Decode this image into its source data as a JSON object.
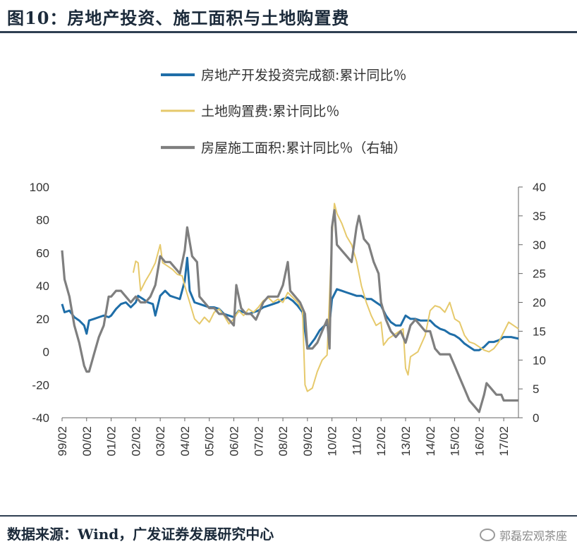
{
  "figure": {
    "title": "图10：房地产投资、施工面积与土地购置费",
    "source": "数据来源：Wind，广发证券发展研究中心",
    "watermark": "郭磊宏观茶座"
  },
  "chart_data": {
    "type": "line",
    "title": "",
    "legend_position": "top",
    "left_axis": {
      "min": -40,
      "max": 100,
      "ticks": [
        100,
        80,
        60,
        40,
        20,
        0,
        -20,
        -40
      ]
    },
    "right_axis": {
      "min": 0,
      "max": 40,
      "ticks": [
        40,
        35,
        30,
        25,
        20,
        15,
        10,
        5,
        0
      ]
    },
    "x_range": [
      1999.0,
      2017.6
    ],
    "x_ticks": [
      {
        "label": "99/02",
        "value": 1999.0
      },
      {
        "label": "00/02",
        "value": 2000.0
      },
      {
        "label": "01/02",
        "value": 2001.0
      },
      {
        "label": "02/02",
        "value": 2002.0
      },
      {
        "label": "03/02",
        "value": 2003.0
      },
      {
        "label": "04/02",
        "value": 2004.0
      },
      {
        "label": "05/02",
        "value": 2005.0
      },
      {
        "label": "06/02",
        "value": 2006.0
      },
      {
        "label": "07/02",
        "value": 2007.0
      },
      {
        "label": "08/02",
        "value": 2008.0
      },
      {
        "label": "09/02",
        "value": 2009.0
      },
      {
        "label": "10/02",
        "value": 2010.0
      },
      {
        "label": "11/02",
        "value": 2011.0
      },
      {
        "label": "12/02",
        "value": 2012.0
      },
      {
        "label": "13/02",
        "value": 2013.0
      },
      {
        "label": "14/02",
        "value": 2014.0
      },
      {
        "label": "15/02",
        "value": 2015.0
      },
      {
        "label": "16/02",
        "value": 2016.0
      },
      {
        "label": "17/02",
        "value": 2017.0
      }
    ],
    "series": [
      {
        "name": "房地产开发投资完成额:累计同比％",
        "axis": "left",
        "color": "#1f6ea8",
        "width": 3,
        "points": [
          [
            1999.0,
            29
          ],
          [
            1999.1,
            24
          ],
          [
            1999.3,
            25
          ],
          [
            1999.5,
            21
          ],
          [
            1999.7,
            19
          ],
          [
            1999.9,
            16
          ],
          [
            2000.0,
            11
          ],
          [
            2000.1,
            19
          ],
          [
            2000.3,
            20
          ],
          [
            2000.5,
            21
          ],
          [
            2000.7,
            22
          ],
          [
            2000.9,
            21
          ],
          [
            2001.0,
            22
          ],
          [
            2001.2,
            26
          ],
          [
            2001.4,
            29
          ],
          [
            2001.6,
            30
          ],
          [
            2001.8,
            27
          ],
          [
            2002.0,
            30
          ],
          [
            2002.1,
            34
          ],
          [
            2002.3,
            32
          ],
          [
            2002.5,
            30
          ],
          [
            2002.7,
            29
          ],
          [
            2002.8,
            22
          ],
          [
            2003.0,
            34
          ],
          [
            2003.2,
            37
          ],
          [
            2003.4,
            34
          ],
          [
            2003.6,
            33
          ],
          [
            2003.8,
            32
          ],
          [
            2004.0,
            43
          ],
          [
            2004.1,
            57
          ],
          [
            2004.2,
            37
          ],
          [
            2004.4,
            30
          ],
          [
            2004.6,
            29
          ],
          [
            2004.8,
            28
          ],
          [
            2005.0,
            27
          ],
          [
            2005.2,
            27
          ],
          [
            2005.4,
            26
          ],
          [
            2005.6,
            23
          ],
          [
            2005.8,
            22
          ],
          [
            2006.0,
            21
          ],
          [
            2006.2,
            25
          ],
          [
            2006.4,
            24
          ],
          [
            2006.6,
            23
          ],
          [
            2006.8,
            24
          ],
          [
            2007.0,
            25
          ],
          [
            2007.2,
            27
          ],
          [
            2007.4,
            28
          ],
          [
            2007.6,
            29
          ],
          [
            2007.8,
            30
          ],
          [
            2008.0,
            32
          ],
          [
            2008.2,
            33
          ],
          [
            2008.4,
            31
          ],
          [
            2008.6,
            28
          ],
          [
            2008.8,
            24
          ],
          [
            2009.0,
            2
          ],
          [
            2009.1,
            4
          ],
          [
            2009.3,
            8
          ],
          [
            2009.5,
            13
          ],
          [
            2009.7,
            16
          ],
          [
            2009.9,
            17
          ],
          [
            2010.0,
            32
          ],
          [
            2010.2,
            38
          ],
          [
            2010.4,
            37
          ],
          [
            2010.6,
            36
          ],
          [
            2010.8,
            35
          ],
          [
            2011.0,
            34
          ],
          [
            2011.2,
            34
          ],
          [
            2011.4,
            32
          ],
          [
            2011.6,
            32
          ],
          [
            2011.8,
            30
          ],
          [
            2012.0,
            28
          ],
          [
            2012.2,
            22
          ],
          [
            2012.4,
            18
          ],
          [
            2012.6,
            16
          ],
          [
            2012.8,
            16
          ],
          [
            2013.0,
            22
          ],
          [
            2013.2,
            20
          ],
          [
            2013.4,
            20
          ],
          [
            2013.6,
            19
          ],
          [
            2013.8,
            19
          ],
          [
            2014.0,
            19
          ],
          [
            2014.2,
            16
          ],
          [
            2014.4,
            14
          ],
          [
            2014.6,
            13
          ],
          [
            2014.8,
            11
          ],
          [
            2015.0,
            10
          ],
          [
            2015.2,
            8
          ],
          [
            2015.4,
            5
          ],
          [
            2015.6,
            3
          ],
          [
            2015.8,
            1
          ],
          [
            2016.0,
            1
          ],
          [
            2016.2,
            3
          ],
          [
            2016.4,
            6
          ],
          [
            2016.6,
            6
          ],
          [
            2016.8,
            7
          ],
          [
            2017.0,
            9
          ],
          [
            2017.3,
            9
          ],
          [
            2017.6,
            8
          ]
        ]
      },
      {
        "name": "土地购置费:累计同比％",
        "axis": "left",
        "color": "#e6c96b",
        "width": 2,
        "points": [
          [
            2001.9,
            48
          ],
          [
            2002.0,
            55
          ],
          [
            2002.1,
            54
          ],
          [
            2002.2,
            37
          ],
          [
            2002.4,
            43
          ],
          [
            2002.6,
            48
          ],
          [
            2002.8,
            54
          ],
          [
            2003.0,
            65
          ],
          [
            2003.1,
            54
          ],
          [
            2003.3,
            52
          ],
          [
            2003.5,
            50
          ],
          [
            2003.7,
            47
          ],
          [
            2003.9,
            46
          ],
          [
            2004.0,
            40
          ],
          [
            2004.2,
            30
          ],
          [
            2004.4,
            20
          ],
          [
            2004.6,
            17
          ],
          [
            2004.8,
            21
          ],
          [
            2005.0,
            18
          ],
          [
            2005.2,
            24
          ],
          [
            2005.4,
            26
          ],
          [
            2005.6,
            22
          ],
          [
            2005.8,
            17
          ],
          [
            2006.0,
            20
          ],
          [
            2006.2,
            25
          ],
          [
            2006.4,
            22
          ],
          [
            2006.6,
            26
          ],
          [
            2006.8,
            24
          ],
          [
            2007.0,
            27
          ],
          [
            2007.2,
            31
          ],
          [
            2007.4,
            33
          ],
          [
            2007.6,
            30
          ],
          [
            2007.8,
            32
          ],
          [
            2008.0,
            30
          ],
          [
            2008.2,
            36
          ],
          [
            2008.4,
            33
          ],
          [
            2008.6,
            30
          ],
          [
            2008.8,
            25
          ],
          [
            2008.9,
            -20
          ],
          [
            2009.0,
            -24
          ],
          [
            2009.2,
            -22
          ],
          [
            2009.4,
            -12
          ],
          [
            2009.6,
            -5
          ],
          [
            2009.8,
            -2
          ],
          [
            2010.0,
            70
          ],
          [
            2010.1,
            90
          ],
          [
            2010.2,
            84
          ],
          [
            2010.4,
            78
          ],
          [
            2010.6,
            70
          ],
          [
            2010.8,
            65
          ],
          [
            2011.0,
            55
          ],
          [
            2011.2,
            40
          ],
          [
            2011.4,
            30
          ],
          [
            2011.6,
            22
          ],
          [
            2011.8,
            16
          ],
          [
            2011.9,
            17
          ],
          [
            2012.0,
            18
          ],
          [
            2012.1,
            4
          ],
          [
            2012.3,
            8
          ],
          [
            2012.5,
            10
          ],
          [
            2012.7,
            12
          ],
          [
            2012.9,
            14
          ],
          [
            2013.0,
            -10
          ],
          [
            2013.1,
            -14
          ],
          [
            2013.2,
            -3
          ],
          [
            2013.5,
            0
          ],
          [
            2013.8,
            10
          ],
          [
            2014.0,
            25
          ],
          [
            2014.2,
            28
          ],
          [
            2014.4,
            27
          ],
          [
            2014.6,
            24
          ],
          [
            2014.8,
            30
          ],
          [
            2015.0,
            20
          ],
          [
            2015.2,
            18
          ],
          [
            2015.4,
            10
          ],
          [
            2015.6,
            6
          ],
          [
            2015.8,
            5
          ],
          [
            2016.0,
            3
          ],
          [
            2016.2,
            1
          ],
          [
            2016.4,
            0
          ],
          [
            2016.6,
            2
          ],
          [
            2016.8,
            6
          ],
          [
            2017.0,
            12
          ],
          [
            2017.2,
            18
          ],
          [
            2017.4,
            16
          ],
          [
            2017.6,
            14
          ]
        ]
      },
      {
        "name": "房屋施工面积:累计同比％（右轴）",
        "axis": "right",
        "color": "#7f7f7f",
        "width": 3.2,
        "points": [
          [
            1999.0,
            29
          ],
          [
            1999.1,
            24
          ],
          [
            1999.3,
            21
          ],
          [
            1999.5,
            16
          ],
          [
            1999.7,
            13
          ],
          [
            1999.9,
            9
          ],
          [
            2000.0,
            8
          ],
          [
            2000.1,
            8
          ],
          [
            2000.3,
            11
          ],
          [
            2000.5,
            14
          ],
          [
            2000.7,
            16
          ],
          [
            2000.9,
            21
          ],
          [
            2001.0,
            21
          ],
          [
            2001.2,
            22
          ],
          [
            2001.4,
            22
          ],
          [
            2001.6,
            21
          ],
          [
            2001.8,
            20
          ],
          [
            2002.0,
            21
          ],
          [
            2002.2,
            20
          ],
          [
            2002.4,
            20
          ],
          [
            2002.6,
            21
          ],
          [
            2002.8,
            23
          ],
          [
            2003.0,
            28
          ],
          [
            2003.2,
            27
          ],
          [
            2003.4,
            27
          ],
          [
            2003.6,
            26
          ],
          [
            2003.8,
            25
          ],
          [
            2004.0,
            29
          ],
          [
            2004.1,
            33
          ],
          [
            2004.3,
            28
          ],
          [
            2004.5,
            27
          ],
          [
            2004.6,
            21
          ],
          [
            2004.8,
            20
          ],
          [
            2005.0,
            19
          ],
          [
            2005.2,
            19
          ],
          [
            2005.4,
            18
          ],
          [
            2005.6,
            18
          ],
          [
            2005.8,
            17
          ],
          [
            2006.0,
            16
          ],
          [
            2006.1,
            23
          ],
          [
            2006.3,
            19
          ],
          [
            2006.5,
            18
          ],
          [
            2006.7,
            18
          ],
          [
            2006.9,
            17
          ],
          [
            2007.0,
            18
          ],
          [
            2007.2,
            20
          ],
          [
            2007.4,
            21
          ],
          [
            2007.6,
            21
          ],
          [
            2007.8,
            21
          ],
          [
            2008.0,
            23
          ],
          [
            2008.2,
            27
          ],
          [
            2008.3,
            22
          ],
          [
            2008.5,
            21
          ],
          [
            2008.7,
            20
          ],
          [
            2008.9,
            18
          ],
          [
            2009.0,
            12
          ],
          [
            2009.2,
            12
          ],
          [
            2009.4,
            13
          ],
          [
            2009.6,
            15
          ],
          [
            2009.8,
            17
          ],
          [
            2009.9,
            12
          ],
          [
            2010.0,
            33
          ],
          [
            2010.1,
            36
          ],
          [
            2010.2,
            30
          ],
          [
            2010.4,
            29
          ],
          [
            2010.6,
            28
          ],
          [
            2010.8,
            27
          ],
          [
            2011.0,
            33
          ],
          [
            2011.1,
            35
          ],
          [
            2011.3,
            31
          ],
          [
            2011.5,
            30
          ],
          [
            2011.7,
            27
          ],
          [
            2011.9,
            25
          ],
          [
            2012.0,
            20
          ],
          [
            2012.2,
            17
          ],
          [
            2012.4,
            15
          ],
          [
            2012.6,
            14
          ],
          [
            2012.8,
            15
          ],
          [
            2013.0,
            13
          ],
          [
            2013.2,
            16
          ],
          [
            2013.4,
            17
          ],
          [
            2013.6,
            16
          ],
          [
            2013.8,
            15
          ],
          [
            2014.0,
            15
          ],
          [
            2014.2,
            12
          ],
          [
            2014.4,
            11
          ],
          [
            2014.6,
            11
          ],
          [
            2014.8,
            11
          ],
          [
            2015.0,
            9
          ],
          [
            2015.2,
            7
          ],
          [
            2015.4,
            5
          ],
          [
            2015.6,
            3
          ],
          [
            2015.8,
            2
          ],
          [
            2016.0,
            1
          ],
          [
            2016.2,
            4
          ],
          [
            2016.3,
            6
          ],
          [
            2016.5,
            5
          ],
          [
            2016.7,
            4
          ],
          [
            2016.9,
            4
          ],
          [
            2017.0,
            3
          ],
          [
            2017.3,
            3
          ],
          [
            2017.6,
            3
          ]
        ]
      }
    ]
  }
}
